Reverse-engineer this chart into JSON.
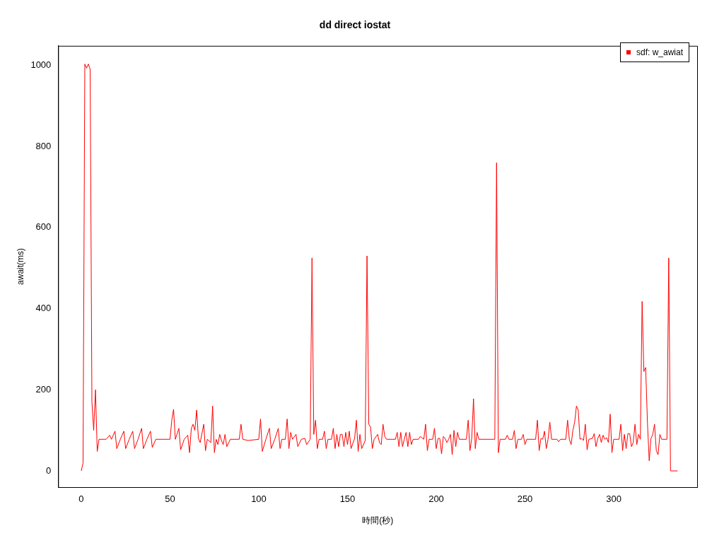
{
  "chart_data": {
    "type": "line",
    "title": "dd direct iostat",
    "xlabel": "時間(秒)",
    "ylabel": "await(ms)",
    "xlim": [
      -13,
      347
    ],
    "ylim": [
      -40,
      1048
    ],
    "xticks": [
      0,
      50,
      100,
      150,
      200,
      250,
      300
    ],
    "yticks": [
      0,
      200,
      400,
      600,
      800,
      1000
    ],
    "grid": false,
    "legend": "top right",
    "marker": "none",
    "line_style": "solid",
    "series": [
      {
        "name": "sdf: w_awiat",
        "color": "#ff0000",
        "x": [
          0,
          1,
          2,
          3,
          4,
          5,
          6,
          7,
          8,
          9,
          10,
          14,
          16,
          17,
          19,
          20,
          22,
          24,
          25,
          27,
          29,
          30,
          32,
          34,
          35,
          37,
          39,
          40,
          42,
          50,
          51,
          52,
          53,
          55,
          56,
          58,
          60,
          61,
          62,
          63,
          64,
          65,
          66,
          67,
          69,
          70,
          71,
          73,
          74,
          75,
          76,
          77,
          78,
          79,
          80,
          81,
          82,
          84,
          89,
          90,
          91,
          94,
          100,
          101,
          102,
          104,
          106,
          107,
          109,
          111,
          112,
          113,
          115,
          116,
          117,
          118,
          119,
          121,
          122,
          124,
          126,
          127,
          129,
          130,
          131,
          132,
          133,
          134,
          136,
          137,
          138,
          139,
          141,
          142,
          143,
          144,
          145,
          146,
          147,
          148,
          149,
          150,
          151,
          152,
          154,
          155,
          156,
          157,
          158,
          160,
          161,
          162,
          163,
          164,
          165,
          167,
          168,
          169,
          170,
          171,
          172,
          177,
          178,
          179,
          180,
          181,
          182,
          183,
          184,
          185,
          186,
          187,
          190,
          191,
          193,
          194,
          195,
          196,
          198,
          199,
          200,
          201,
          202,
          203,
          204,
          205,
          206,
          207,
          208,
          209,
          210,
          211,
          212,
          213,
          217,
          218,
          219,
          220,
          221,
          222,
          223,
          224,
          233,
          234,
          235,
          236,
          239,
          240,
          241,
          243,
          244,
          245,
          246,
          248,
          249,
          250,
          251,
          256,
          257,
          258,
          259,
          260,
          261,
          262,
          263,
          264,
          265,
          268,
          269,
          270,
          273,
          274,
          275,
          276,
          277,
          278,
          279,
          280,
          281,
          282,
          283,
          284,
          285,
          286,
          288,
          289,
          290,
          291,
          292,
          293,
          294,
          295,
          296,
          297,
          298,
          299,
          300,
          303,
          304,
          305,
          306,
          307,
          308,
          309,
          310,
          311,
          312,
          313,
          314,
          315,
          316,
          317,
          318,
          319,
          320,
          321,
          322,
          323,
          324,
          325,
          326,
          327,
          330,
          331,
          332,
          336
        ],
        "values": [
          0,
          20,
          1003,
          993,
          1003,
          990,
          170,
          100,
          200,
          48,
          78,
          78,
          88,
          78,
          98,
          55,
          78,
          98,
          55,
          78,
          98,
          55,
          78,
          105,
          55,
          78,
          98,
          58,
          78,
          78,
          125,
          152,
          78,
          105,
          52,
          78,
          88,
          45,
          105,
          115,
          100,
          150,
          80,
          70,
          115,
          50,
          78,
          70,
          160,
          45,
          78,
          65,
          90,
          75,
          65,
          90,
          60,
          78,
          78,
          115,
          78,
          75,
          78,
          128,
          48,
          78,
          105,
          55,
          78,
          105,
          55,
          78,
          78,
          128,
          55,
          95,
          78,
          90,
          60,
          78,
          80,
          65,
          78,
          525,
          90,
          125,
          55,
          78,
          78,
          98,
          55,
          78,
          78,
          105,
          55,
          90,
          60,
          90,
          90,
          60,
          95,
          65,
          98,
          55,
          80,
          125,
          48,
          90,
          55,
          75,
          530,
          115,
          108,
          55,
          78,
          90,
          70,
          65,
          115,
          85,
          78,
          78,
          95,
          60,
          95,
          60,
          78,
          95,
          60,
          95,
          65,
          78,
          78,
          85,
          78,
          115,
          50,
          78,
          78,
          105,
          55,
          80,
          80,
          42,
          85,
          80,
          70,
          78,
          90,
          40,
          100,
          60,
          95,
          78,
          78,
          125,
          50,
          80,
          178,
          55,
          95,
          78,
          78,
          760,
          45,
          78,
          78,
          88,
          78,
          78,
          100,
          55,
          78,
          78,
          90,
          65,
          78,
          78,
          125,
          50,
          80,
          78,
          98,
          55,
          78,
          120,
          78,
          78,
          72,
          78,
          78,
          125,
          78,
          65,
          100,
          120,
          160,
          150,
          78,
          80,
          75,
          115,
          52,
          78,
          80,
          92,
          60,
          80,
          90,
          70,
          88,
          78,
          82,
          70,
          140,
          45,
          78,
          78,
          115,
          50,
          90,
          55,
          92,
          92,
          60,
          70,
          115,
          65,
          90,
          78,
          418,
          245,
          255,
          120,
          25,
          80,
          90,
          115,
          50,
          40,
          90,
          78,
          78,
          525,
          0,
          0
        ]
      }
    ]
  }
}
